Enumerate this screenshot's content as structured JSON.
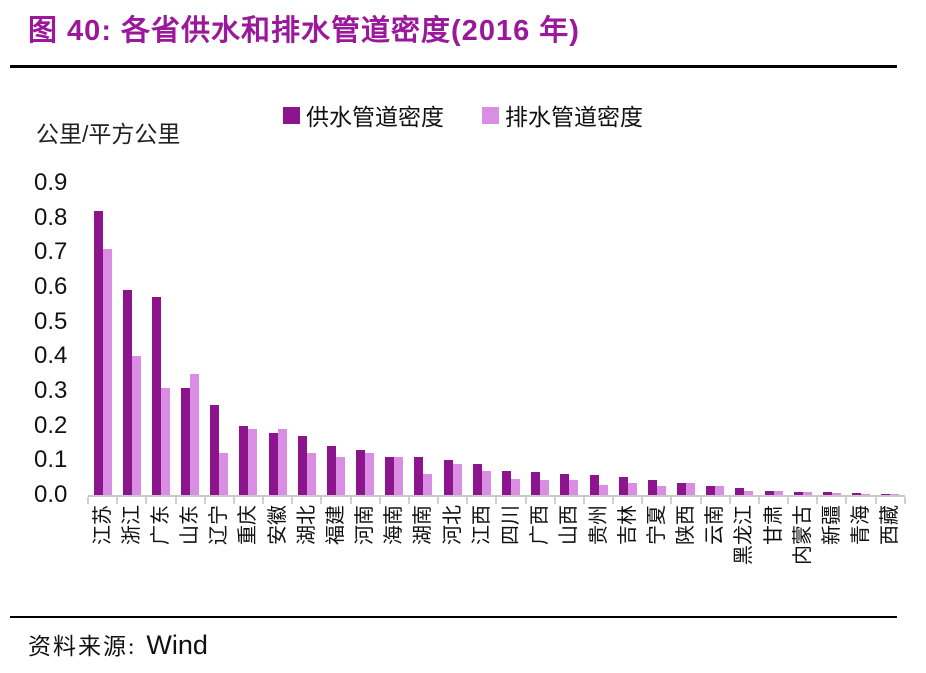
{
  "header": {
    "title": "图 40:  各省供水和排水管道密度(2016 年)"
  },
  "y_axis_unit": "公里/平方公里",
  "legend": {
    "items": [
      {
        "label": "供水管道密度",
        "color": "#8c148c"
      },
      {
        "label": "排水管道密度",
        "color": "#d98ee3"
      }
    ]
  },
  "source": {
    "prefix": "资料来源:",
    "name": "Wind"
  },
  "chart_data": {
    "type": "bar",
    "title": "各省供水和排水管道密度(2016 年)",
    "ylabel": "公里/平方公里",
    "xlabel": "",
    "ylim": [
      0,
      0.9
    ],
    "ytick_labels": [
      "0.9",
      "0.8",
      "0.7",
      "0.6",
      "0.5",
      "0.4",
      "0.3",
      "0.2",
      "0.1",
      "0.0"
    ],
    "grid": false,
    "legend_position": "top",
    "x_label_rotation": 90,
    "categories": [
      "江苏",
      "浙江",
      "广东",
      "山东",
      "辽宁",
      "重庆",
      "安徽",
      "湖北",
      "福建",
      "河南",
      "海南",
      "湖南",
      "河北",
      "江西",
      "四川",
      "广西",
      "山西",
      "贵州",
      "吉林",
      "宁夏",
      "陕西",
      "云南",
      "黑龙江",
      "甘肃",
      "内蒙古",
      "新疆",
      "青海",
      "西藏"
    ],
    "series": [
      {
        "name": "供水管道密度",
        "color": "#8c148c",
        "values": [
          0.82,
          0.59,
          0.57,
          0.31,
          0.26,
          0.2,
          0.18,
          0.17,
          0.14,
          0.13,
          0.11,
          0.11,
          0.1,
          0.09,
          0.07,
          0.065,
          0.06,
          0.058,
          0.053,
          0.042,
          0.034,
          0.025,
          0.019,
          0.012,
          0.01,
          0.008,
          0.005,
          0.003
        ]
      },
      {
        "name": "排水管道密度",
        "color": "#d98ee3",
        "values": [
          0.71,
          0.4,
          0.31,
          0.35,
          0.12,
          0.19,
          0.19,
          0.12,
          0.11,
          0.12,
          0.11,
          0.06,
          0.09,
          0.07,
          0.045,
          0.042,
          0.043,
          0.029,
          0.034,
          0.025,
          0.035,
          0.026,
          0.013,
          0.012,
          0.008,
          0.005,
          0.003,
          0.002
        ]
      }
    ]
  }
}
